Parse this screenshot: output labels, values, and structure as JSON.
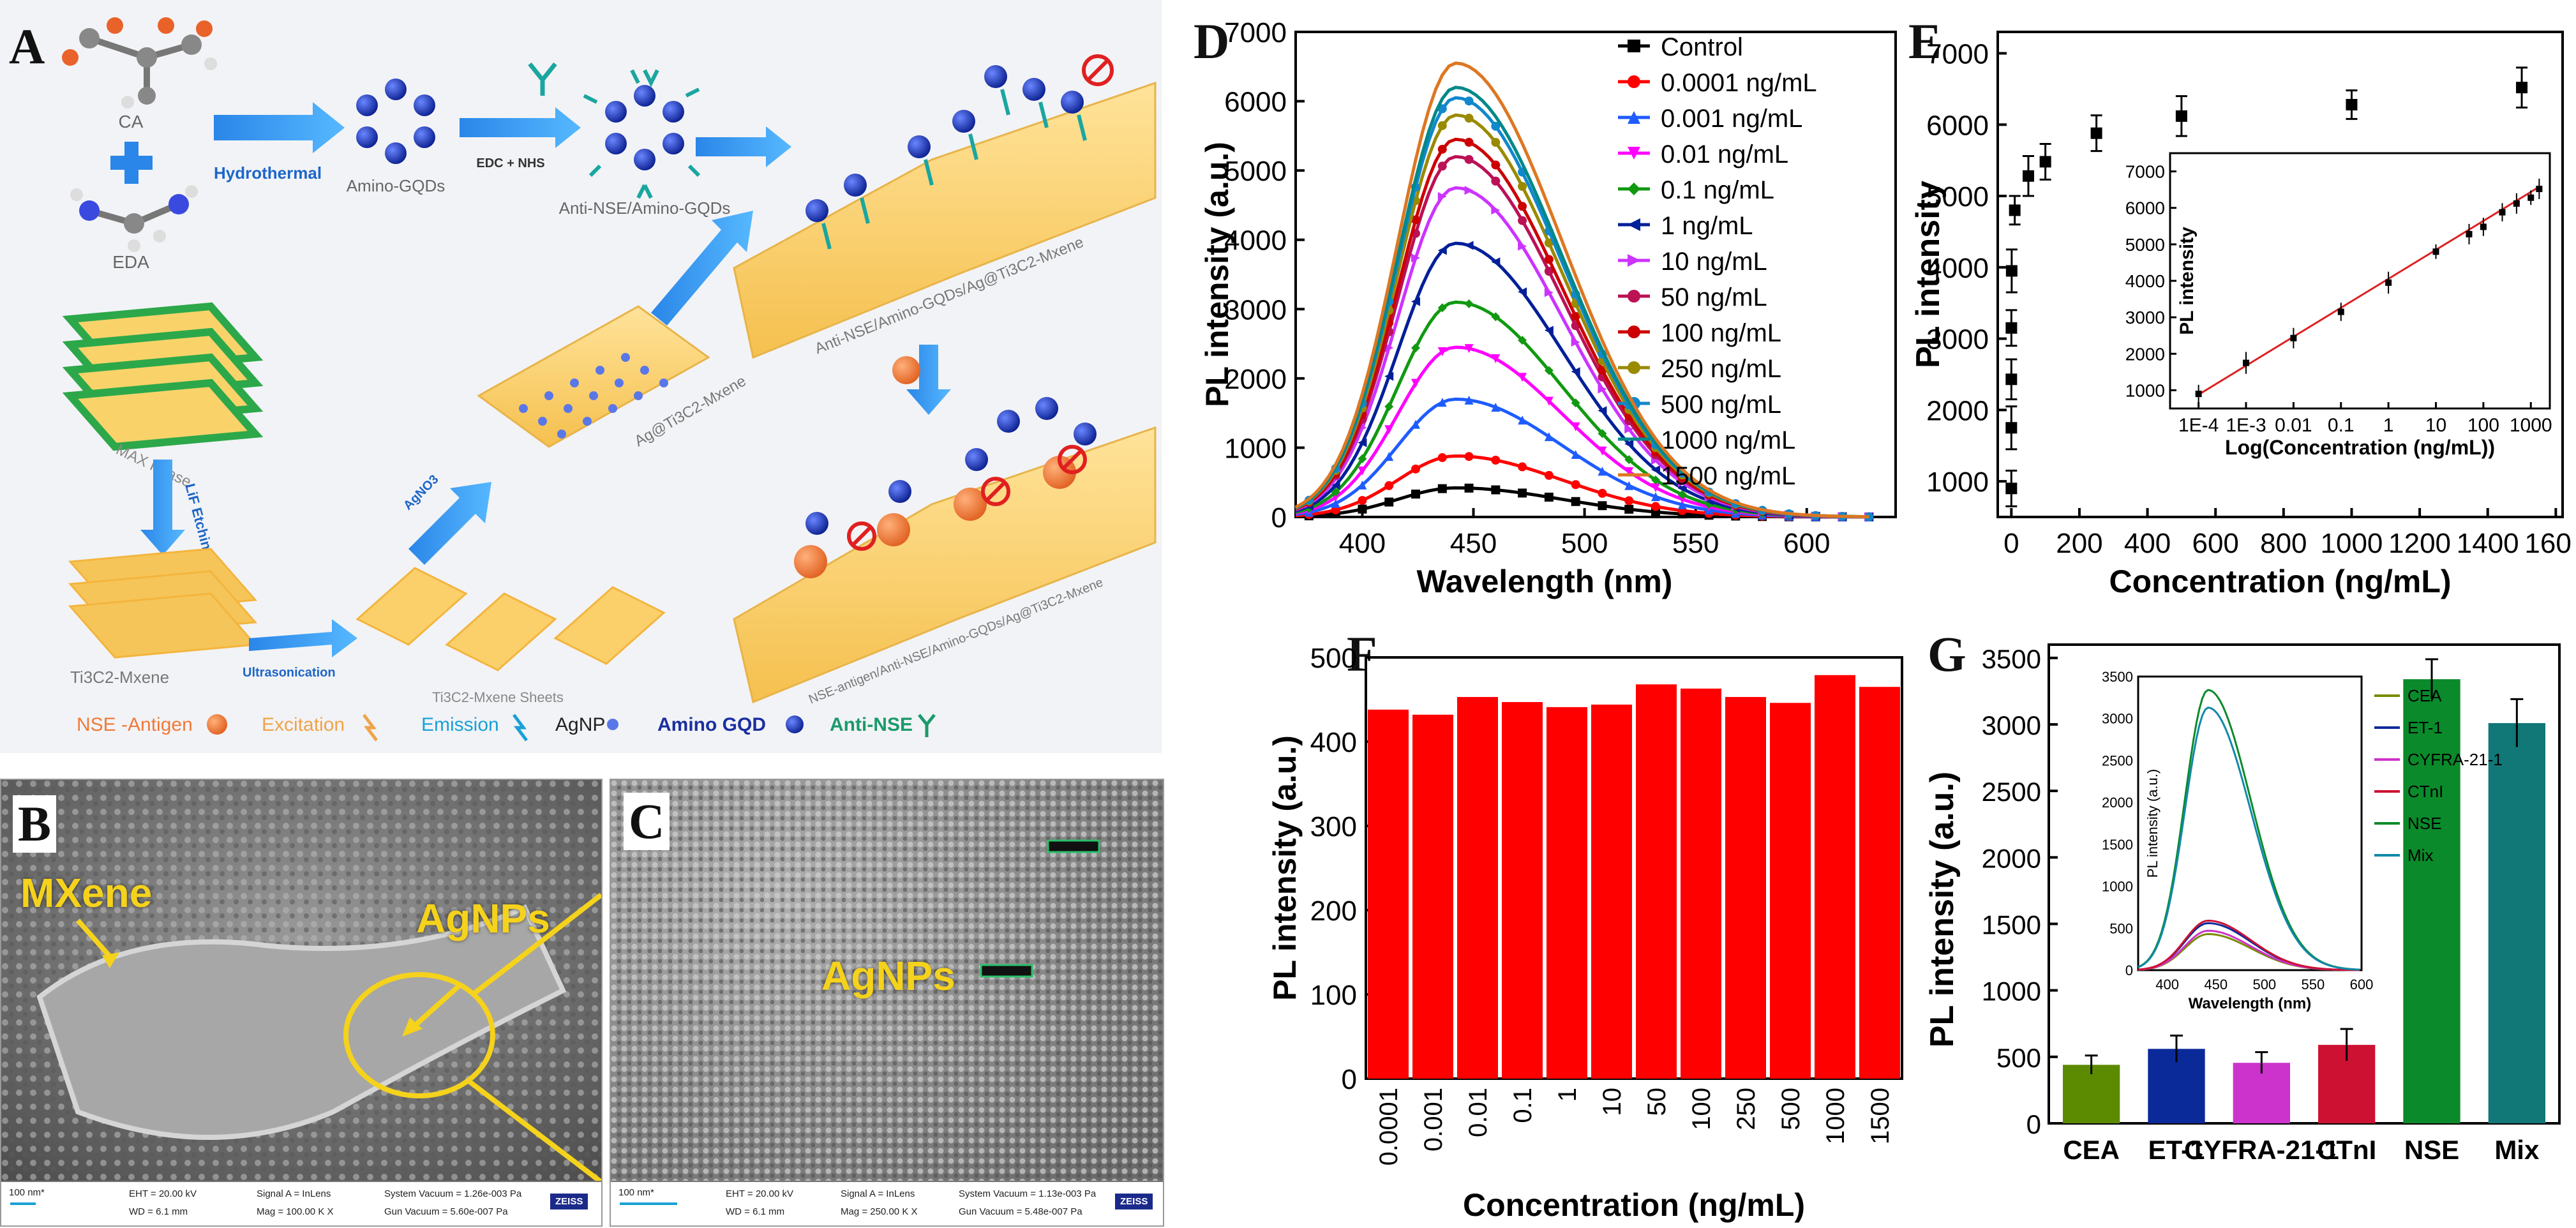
{
  "panels": {
    "A": "A",
    "B": "B",
    "C": "C",
    "D": "D",
    "E": "E",
    "F": "F",
    "G": "G"
  },
  "schematic": {
    "ca": "CA",
    "eda": "EDA",
    "hydrothermal": "Hydrothermal",
    "edc_nhs": "EDC + NHS",
    "amino_gqds": "Amino-GQDs",
    "anti_nse_amino_gqds": "Anti-NSE/Amino-GQDs",
    "top_composite": "Anti-NSE/Amino-GQDs/Ag@Ti3C2-Mxene",
    "max_phase": "MAX Phase",
    "lif_etching": "LiF Etching",
    "ti3c2_mxene": "Ti3C2-Mxene",
    "ultrasonication": "Ultrasonication",
    "mxene_sheets": "Ti3C2-Mxene Sheets",
    "agno3": "AgNO3",
    "ag_ti3c2": "Ag@Ti3C2-Mxene",
    "bottom_composite": "NSE-antigen/Anti-NSE/Amino-GQDs/Ag@Ti3C2-Mxene",
    "legend": {
      "nse_antigen": "NSE -Antigen",
      "excitation": "Excitation",
      "emission": "Emission",
      "agnp": "AgNP",
      "amino_gqd": "Amino GQD",
      "anti_nse": "Anti-NSE"
    }
  },
  "sem_b": {
    "label_mxene": "MXene",
    "label_agnps": "AgNPs",
    "scale": "100 nm*",
    "eht": "EHT = 20.00 kV",
    "wd": "WD = 6.1 mm",
    "signal": "Signal A = InLens",
    "mag": "Mag = 100.00 K X",
    "sys_vac": "System Vacuum = 1.26e-003 Pa",
    "gun_vac": "Gun Vacuum = 5.60e-007 Pa",
    "brand": "ZEISS"
  },
  "sem_c": {
    "label_agnps": "AgNPs",
    "scale": "100 nm*",
    "eht": "EHT = 20.00 kV",
    "wd": "WD = 6.1 mm",
    "signal": "Signal A = InLens",
    "mag": "Mag = 250.00 K X",
    "sys_vac": "System Vacuum = 1.13e-003 Pa",
    "gun_vac": "Gun Vacuum = 5.48e-007 Pa",
    "brand": "ZEISS"
  },
  "chart_data": [
    {
      "id": "D",
      "type": "line",
      "xlabel": "Wavelength (nm)",
      "ylabel": "PL intensity (a.u.)",
      "xlim": [
        370,
        640
      ],
      "ylim": [
        0,
        7000
      ],
      "xticks": [
        400,
        450,
        500,
        550,
        600
      ],
      "yticks": [
        0,
        1000,
        2000,
        3000,
        4000,
        5000,
        6000,
        7000
      ],
      "peak_wavelength": 442,
      "series": [
        {
          "name": "Control",
          "peak": 420,
          "color": "#000000",
          "marker": "square"
        },
        {
          "name": "0.0001 ng/mL",
          "peak": 880,
          "color": "#ff0000",
          "marker": "circle"
        },
        {
          "name": "0.001 ng/mL",
          "peak": 1700,
          "color": "#1f5cff",
          "marker": "triangle"
        },
        {
          "name": "0.01 ng/mL",
          "peak": 2450,
          "color": "#ff00ff",
          "marker": "tri-down"
        },
        {
          "name": "0.1 ng/mL",
          "peak": 3100,
          "color": "#119911",
          "marker": "diamond"
        },
        {
          "name": "1 ng/mL",
          "peak": 3950,
          "color": "#001f99",
          "marker": "tri-left"
        },
        {
          "name": "10 ng/mL",
          "peak": 4750,
          "color": "#cc33ff",
          "marker": "tri-right"
        },
        {
          "name": "50 ng/mL",
          "peak": 5200,
          "color": "#bb1155",
          "marker": "hexagon"
        },
        {
          "name": "100 ng/mL",
          "peak": 5450,
          "color": "#cc0000",
          "marker": "star"
        },
        {
          "name": "250 ng/mL",
          "peak": 5800,
          "color": "#9a8a00",
          "marker": "pentagon"
        },
        {
          "name": "500 ng/mL",
          "peak": 6050,
          "color": "#1188cc",
          "marker": "circle"
        },
        {
          "name": "1000 ng/mL",
          "peak": 6200,
          "color": "#008888",
          "marker": "line"
        },
        {
          "name": "1500 ng/mL",
          "peak": 6550,
          "color": "#dd7722",
          "marker": "line"
        }
      ]
    },
    {
      "id": "E",
      "type": "scatter",
      "xlabel": "Concentration (ng/mL)",
      "ylabel": "PL intensity",
      "xlim": [
        -40,
        1620
      ],
      "ylim": [
        500,
        7300
      ],
      "xticks": [
        0,
        200,
        400,
        600,
        800,
        1000,
        1200,
        1400,
        1600
      ],
      "yticks": [
        1000,
        2000,
        3000,
        4000,
        5000,
        6000,
        7000
      ],
      "points": [
        {
          "x": 0.0001,
          "y": 900,
          "err": 250
        },
        {
          "x": 0.001,
          "y": 1750,
          "err": 300
        },
        {
          "x": 0.01,
          "y": 2430,
          "err": 280
        },
        {
          "x": 0.1,
          "y": 3150,
          "err": 250
        },
        {
          "x": 1,
          "y": 3950,
          "err": 300
        },
        {
          "x": 10,
          "y": 4800,
          "err": 200
        },
        {
          "x": 50,
          "y": 5280,
          "err": 280
        },
        {
          "x": 100,
          "y": 5480,
          "err": 250
        },
        {
          "x": 250,
          "y": 5880,
          "err": 250
        },
        {
          "x": 500,
          "y": 6120,
          "err": 280
        },
        {
          "x": 1000,
          "y": 6280,
          "err": 200
        },
        {
          "x": 1500,
          "y": 6520,
          "err": 280
        }
      ],
      "inset": {
        "type": "scatter",
        "xlabel": "Log(Concentration (ng/mL))",
        "ylabel": "PL intensity",
        "xlim_log": [
          -4.6,
          3.4
        ],
        "ylim": [
          500,
          7500
        ],
        "xtick_labels": [
          "1E-4",
          "1E-3",
          "0.01",
          "0.1",
          "1",
          "10",
          "100",
          "1000"
        ],
        "xtick_logs": [
          -4,
          -3,
          -2,
          -1,
          0,
          1,
          2,
          3
        ],
        "yticks": [
          1000,
          2000,
          3000,
          4000,
          5000,
          6000,
          7000
        ],
        "fit_line": {
          "x0_log": -4,
          "y0": 880,
          "x1_log": 3.18,
          "y1": 6580
        }
      }
    },
    {
      "id": "F",
      "type": "bar",
      "xlabel": "Concentration (ng/mL)",
      "ylabel": "PL intensity (a.u.)",
      "ylim": [
        0,
        500
      ],
      "yticks": [
        0,
        100,
        200,
        300,
        400,
        500
      ],
      "categories": [
        "0.0001",
        "0.001",
        "0.01",
        "0.1",
        "1",
        "10",
        "50",
        "100",
        "250",
        "500",
        "1000",
        "1500"
      ],
      "values": [
        438,
        432,
        453,
        447,
        441,
        444,
        468,
        463,
        453,
        446,
        479,
        465
      ],
      "color": "#ff0000"
    },
    {
      "id": "G",
      "type": "bar",
      "xlabel": "",
      "ylabel": "PL intensity (a.u.)",
      "ylim": [
        0,
        3600
      ],
      "yticks": [
        0,
        500,
        1000,
        1500,
        2000,
        2500,
        3000,
        3500
      ],
      "categories": [
        "CEA",
        "ET-1",
        "CYFRA-21-1",
        "CTnI",
        "NSE",
        "Mix"
      ],
      "values": [
        440,
        560,
        455,
        590,
        3340,
        3010
      ],
      "errors": [
        70,
        100,
        80,
        120,
        150,
        180
      ],
      "colors": [
        "#5c8a00",
        "#0b2a9a",
        "#cc33cc",
        "#cc1133",
        "#0a8a2a",
        "#117777"
      ],
      "inset": {
        "type": "line",
        "xlabel": "Wavelength (nm)",
        "ylabel": "PL intensity (a.u.)",
        "xlim": [
          370,
          600
        ],
        "ylim": [
          0,
          3500
        ],
        "xticks": [
          400,
          450,
          500,
          550,
          600
        ],
        "yticks": [
          0,
          500,
          1000,
          1500,
          2000,
          2500,
          3000,
          3500
        ],
        "series": [
          {
            "name": "CEA",
            "peak": 430,
            "color": "#7a8a00"
          },
          {
            "name": "ET-1",
            "peak": 560,
            "color": "#0b2a9a"
          },
          {
            "name": "CYFRA-21-1",
            "peak": 470,
            "color": "#cc33cc"
          },
          {
            "name": "CTnI",
            "peak": 590,
            "color": "#cc1133"
          },
          {
            "name": "NSE",
            "peak": 3340,
            "color": "#0a8a2a"
          },
          {
            "name": "Mix",
            "peak": 3130,
            "color": "#1188aa"
          }
        ]
      }
    }
  ]
}
